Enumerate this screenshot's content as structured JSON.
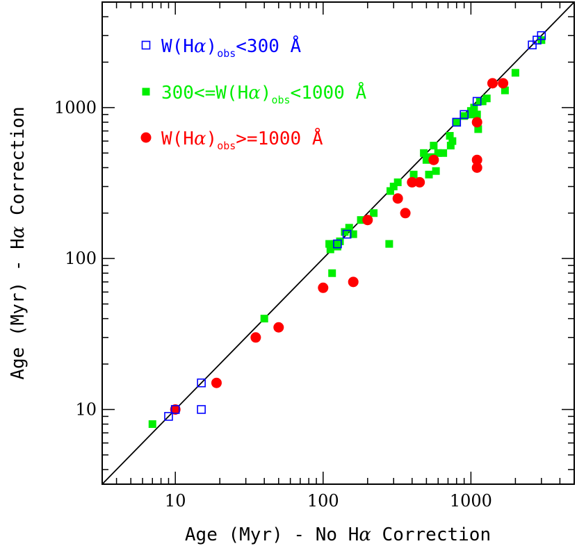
{
  "chart_data": {
    "type": "scatter",
    "xscale": "log",
    "yscale": "log",
    "xlim": [
      3.2,
      5000
    ],
    "ylim": [
      3.2,
      5000
    ],
    "xlabel": {
      "pre": "Age (Myr) - No H",
      "greek": "α",
      "post": " Correction"
    },
    "ylabel": {
      "pre": "Age (Myr) - H",
      "greek": "α",
      "post": " Correction"
    },
    "xticks": [
      {
        "v": 10,
        "label": "10"
      },
      {
        "v": 100,
        "label": "100"
      },
      {
        "v": 1000,
        "label": "1000"
      }
    ],
    "yticks": [
      {
        "v": 10,
        "label": "10"
      },
      {
        "v": 100,
        "label": "100"
      },
      {
        "v": 1000,
        "label": "1000"
      }
    ],
    "one_to_one_line": true,
    "series": [
      {
        "legend": {
          "pre": "W(H",
          "greek": "α",
          "close": ")",
          "sub": "obs",
          "post": "<300 Å"
        },
        "marker": "open-square",
        "color": "#0000ff",
        "x": [
          9,
          10,
          15,
          15,
          125,
          145,
          800,
          900,
          1100,
          2600,
          2800,
          3000
        ],
        "y": [
          9,
          10,
          10,
          15,
          125,
          145,
          800,
          900,
          1100,
          2600,
          2800,
          3000
        ]
      },
      {
        "legend": {
          "pre": "300<=W(H",
          "greek": "α",
          "close": ")",
          "sub": "obs",
          "post": "<1000 Å"
        },
        "marker": "filled-square",
        "color": "#00ee00",
        "x": [
          7,
          10,
          40,
          110,
          112,
          115,
          120,
          125,
          130,
          140,
          150,
          160,
          180,
          220,
          280,
          285,
          300,
          320,
          410,
          480,
          500,
          520,
          540,
          560,
          580,
          600,
          650,
          720,
          730,
          750,
          800,
          900,
          1000,
          1020,
          1050,
          1100,
          1120,
          1150,
          1200,
          1280,
          1700,
          2000,
          3000
        ],
        "y": [
          8,
          10,
          40,
          125,
          115,
          80,
          125,
          120,
          130,
          150,
          160,
          145,
          180,
          200,
          125,
          280,
          300,
          320,
          360,
          500,
          450,
          360,
          470,
          560,
          380,
          500,
          500,
          650,
          560,
          600,
          800,
          880,
          950,
          900,
          1000,
          900,
          720,
          1100,
          1100,
          1150,
          1300,
          1700,
          2800
        ]
      },
      {
        "legend": {
          "pre": "W(H",
          "greek": "α",
          "close": ")",
          "sub": "obs",
          "post": ">=1000 Å"
        },
        "marker": "filled-circle",
        "color": "#ff0000",
        "x": [
          10,
          19,
          35,
          50,
          100,
          160,
          200,
          320,
          360,
          400,
          450,
          560,
          1100,
          1100,
          1100,
          1400,
          1650
        ],
        "y": [
          10,
          15,
          30,
          35,
          64,
          70,
          180,
          250,
          200,
          320,
          320,
          450,
          800,
          450,
          400,
          1450,
          1450
        ]
      }
    ]
  }
}
